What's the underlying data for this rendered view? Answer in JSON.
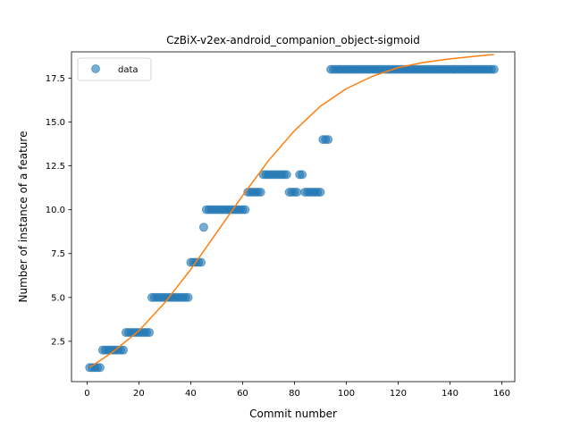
{
  "chart_data": {
    "type": "scatter",
    "title": "CzBiX-v2ex-android_companion_object-sigmoid",
    "xlabel": "Commit number",
    "ylabel": "Number of instance of a feature",
    "xlim": [
      -6,
      165
    ],
    "ylim": [
      0.2,
      19.0
    ],
    "xticks": [
      0,
      20,
      40,
      60,
      80,
      100,
      120,
      140,
      160
    ],
    "yticks": [
      2.5,
      5.0,
      7.5,
      10.0,
      12.5,
      15.0,
      17.5
    ],
    "yticks_labels": [
      "2.5",
      "5.0",
      "7.5",
      "10.0",
      "12.5",
      "15.0",
      "17.5"
    ],
    "legend": {
      "placement": "top-left",
      "entries": [
        "data"
      ]
    },
    "grid": false,
    "colors": {
      "data": "#1f77b4",
      "fit": "#ff7f0e"
    },
    "series": [
      {
        "name": "data",
        "kind": "scatter",
        "points": [
          [
            1,
            1
          ],
          [
            2,
            1
          ],
          [
            3,
            1
          ],
          [
            4,
            1
          ],
          [
            5,
            1
          ],
          [
            6,
            2
          ],
          [
            7,
            2
          ],
          [
            8,
            2
          ],
          [
            9,
            2
          ],
          [
            10,
            2
          ],
          [
            11,
            2
          ],
          [
            12,
            2
          ],
          [
            13,
            2
          ],
          [
            14,
            2
          ],
          [
            15,
            3
          ],
          [
            16,
            3
          ],
          [
            17,
            3
          ],
          [
            18,
            3
          ],
          [
            19,
            3
          ],
          [
            20,
            3
          ],
          [
            21,
            3
          ],
          [
            22,
            3
          ],
          [
            23,
            3
          ],
          [
            24,
            3
          ],
          [
            25,
            5
          ],
          [
            26,
            5
          ],
          [
            27,
            5
          ],
          [
            28,
            5
          ],
          [
            29,
            5
          ],
          [
            30,
            5
          ],
          [
            31,
            5
          ],
          [
            32,
            5
          ],
          [
            33,
            5
          ],
          [
            34,
            5
          ],
          [
            35,
            5
          ],
          [
            36,
            5
          ],
          [
            37,
            5
          ],
          [
            38,
            5
          ],
          [
            39,
            5
          ],
          [
            40,
            7
          ],
          [
            41,
            7
          ],
          [
            42,
            7
          ],
          [
            43,
            7
          ],
          [
            44,
            7
          ],
          [
            45,
            9
          ],
          [
            46,
            10
          ],
          [
            47,
            10
          ],
          [
            48,
            10
          ],
          [
            49,
            10
          ],
          [
            50,
            10
          ],
          [
            51,
            10
          ],
          [
            52,
            10
          ],
          [
            53,
            10
          ],
          [
            54,
            10
          ],
          [
            55,
            10
          ],
          [
            56,
            10
          ],
          [
            57,
            10
          ],
          [
            58,
            10
          ],
          [
            59,
            10
          ],
          [
            60,
            10
          ],
          [
            61,
            10
          ],
          [
            62,
            11
          ],
          [
            63,
            11
          ],
          [
            64,
            11
          ],
          [
            65,
            11
          ],
          [
            66,
            11
          ],
          [
            67,
            11
          ],
          [
            68,
            12
          ],
          [
            69,
            12
          ],
          [
            70,
            12
          ],
          [
            71,
            12
          ],
          [
            72,
            12
          ],
          [
            73,
            12
          ],
          [
            74,
            12
          ],
          [
            75,
            12
          ],
          [
            76,
            12
          ],
          [
            77,
            12
          ],
          [
            78,
            11
          ],
          [
            79,
            11
          ],
          [
            80,
            11
          ],
          [
            81,
            11
          ],
          [
            82,
            12
          ],
          [
            83,
            12
          ],
          [
            84,
            11
          ],
          [
            85,
            11
          ],
          [
            86,
            11
          ],
          [
            87,
            11
          ],
          [
            88,
            11
          ],
          [
            89,
            11
          ],
          [
            90,
            11
          ],
          [
            91,
            14
          ],
          [
            92,
            14
          ],
          [
            93,
            14
          ],
          [
            94,
            18
          ],
          [
            95,
            18
          ],
          [
            96,
            18
          ],
          [
            97,
            18
          ],
          [
            98,
            18
          ],
          [
            99,
            18
          ],
          [
            100,
            18
          ],
          [
            101,
            18
          ],
          [
            102,
            18
          ],
          [
            103,
            18
          ],
          [
            104,
            18
          ],
          [
            105,
            18
          ],
          [
            106,
            18
          ],
          [
            107,
            18
          ],
          [
            108,
            18
          ],
          [
            109,
            18
          ],
          [
            110,
            18
          ],
          [
            111,
            18
          ],
          [
            112,
            18
          ],
          [
            113,
            18
          ],
          [
            114,
            18
          ],
          [
            115,
            18
          ],
          [
            116,
            18
          ],
          [
            117,
            18
          ],
          [
            118,
            18
          ],
          [
            119,
            18
          ],
          [
            120,
            18
          ],
          [
            121,
            18
          ],
          [
            122,
            18
          ],
          [
            123,
            18
          ],
          [
            124,
            18
          ],
          [
            125,
            18
          ],
          [
            126,
            18
          ],
          [
            127,
            18
          ],
          [
            128,
            18
          ],
          [
            129,
            18
          ],
          [
            130,
            18
          ],
          [
            131,
            18
          ],
          [
            132,
            18
          ],
          [
            133,
            18
          ],
          [
            134,
            18
          ],
          [
            135,
            18
          ],
          [
            136,
            18
          ],
          [
            137,
            18
          ],
          [
            138,
            18
          ],
          [
            139,
            18
          ],
          [
            140,
            18
          ],
          [
            141,
            18
          ],
          [
            142,
            18
          ],
          [
            143,
            18
          ],
          [
            144,
            18
          ],
          [
            145,
            18
          ],
          [
            146,
            18
          ],
          [
            147,
            18
          ],
          [
            148,
            18
          ],
          [
            149,
            18
          ],
          [
            150,
            18
          ],
          [
            151,
            18
          ],
          [
            152,
            18
          ],
          [
            153,
            18
          ],
          [
            154,
            18
          ],
          [
            155,
            18
          ],
          [
            156,
            18
          ],
          [
            157,
            18
          ]
        ]
      },
      {
        "kind": "line",
        "points": [
          [
            1,
            1.0
          ],
          [
            10,
            1.9
          ],
          [
            20,
            3.1
          ],
          [
            30,
            4.7
          ],
          [
            40,
            6.6
          ],
          [
            50,
            8.7
          ],
          [
            60,
            10.8
          ],
          [
            70,
            12.8
          ],
          [
            80,
            14.5
          ],
          [
            90,
            15.9
          ],
          [
            100,
            16.9
          ],
          [
            110,
            17.6
          ],
          [
            120,
            18.1
          ],
          [
            130,
            18.4
          ],
          [
            140,
            18.6
          ],
          [
            150,
            18.75
          ],
          [
            157,
            18.85
          ]
        ]
      }
    ]
  }
}
